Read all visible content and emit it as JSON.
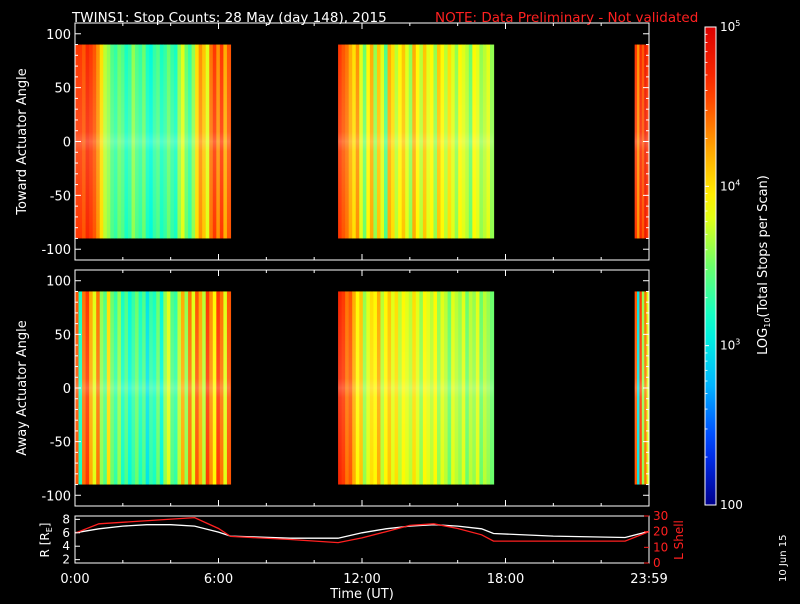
{
  "title": {
    "main": "TWINS1: Stop Counts: 28 May (day 148), 2015",
    "note": "NOTE: Data Preliminary - Not validated",
    "note_color": "#ff2020"
  },
  "date_stamp": "10 Jun 15",
  "colorbar": {
    "label_prefix": "LOG",
    "label_sub": "10",
    "label_suffix": "(Total Stops per Scan)",
    "ticks": [
      {
        "value": 100,
        "base": "100",
        "exp": ""
      },
      {
        "value": 1000,
        "base": "10",
        "exp": "3"
      },
      {
        "value": 10000,
        "base": "10",
        "exp": "4"
      },
      {
        "value": 100000,
        "base": "10",
        "exp": "5"
      }
    ],
    "range": [
      100,
      100000
    ],
    "scale": "log",
    "colormap": [
      "#00008c",
      "#0038ff",
      "#00b4ff",
      "#00ffd8",
      "#6aff6a",
      "#ffff00",
      "#ffa000",
      "#ff3000",
      "#dc0000"
    ]
  },
  "chart_data": [
    {
      "type": "heatmap",
      "name": "toward",
      "ylabel": "Toward Actuator Angle",
      "ylim": [
        -110,
        110
      ],
      "yticks": [
        100,
        50,
        0,
        -50,
        -100
      ],
      "angle_range": [
        -90,
        90
      ],
      "segments": [
        {
          "start_hour": 0.0,
          "end_hour": 6.5,
          "log_counts": [
            4.6,
            4.6,
            4.5,
            4.7,
            4.6,
            4.5,
            4.3,
            4.0,
            3.7,
            3.6,
            3.4,
            3.3,
            3.5,
            3.4,
            3.2,
            3.3,
            3.6,
            3.4,
            3.3,
            3.5,
            3.2,
            3.1,
            3.3,
            3.4,
            3.2,
            3.3,
            3.5,
            3.3,
            3.2,
            3.6,
            3.8,
            3.5,
            3.3,
            3.6,
            4.0,
            4.3,
            4.1,
            3.8,
            4.4,
            4.6,
            4.3,
            4.6,
            4.2,
            4.5
          ]
        },
        {
          "start_hour": 11.0,
          "end_hour": 17.5,
          "log_counts": [
            4.6,
            4.5,
            4.4,
            4.2,
            4.0,
            4.3,
            3.8,
            3.5,
            3.9,
            4.2,
            3.6,
            4.1,
            3.8,
            3.4,
            4.2,
            4.0,
            3.7,
            3.9,
            4.1,
            3.8,
            3.6,
            4.2,
            3.9,
            3.7,
            4.1,
            3.8,
            3.9,
            3.6,
            4.1,
            3.9,
            3.7,
            4.0,
            3.8,
            3.6,
            3.9,
            3.8,
            3.7,
            3.5,
            3.9,
            3.8,
            3.6,
            3.7,
            3.8,
            3.6
          ]
        },
        {
          "start_hour": 23.4,
          "end_hour": 24.0,
          "log_counts": [
            4.6,
            4.3,
            4.7,
            4.5,
            4.8,
            4.6
          ]
        }
      ]
    },
    {
      "type": "heatmap",
      "name": "away",
      "ylabel": "Away Actuator Angle",
      "ylim": [
        -110,
        110
      ],
      "yticks": [
        100,
        50,
        0,
        -50,
        -100
      ],
      "angle_range": [
        -90,
        90
      ],
      "segments": [
        {
          "start_hour": 0.0,
          "end_hour": 6.5,
          "log_counts": [
            4.5,
            3.2,
            4.4,
            4.6,
            4.2,
            3.8,
            4.4,
            3.6,
            3.4,
            4.0,
            3.5,
            3.3,
            3.6,
            3.2,
            3.4,
            3.1,
            3.3,
            3.5,
            3.2,
            3.4,
            3.0,
            3.3,
            3.2,
            3.5,
            3.1,
            3.6,
            3.8,
            3.4,
            3.3,
            3.7,
            4.2,
            3.6,
            4.4,
            3.8,
            4.5,
            4.2,
            3.7,
            4.6,
            4.3,
            3.9,
            4.6,
            4.4,
            3.8,
            4.5
          ]
        },
        {
          "start_hour": 11.0,
          "end_hour": 17.5,
          "log_counts": [
            4.7,
            4.6,
            4.4,
            4.5,
            4.2,
            3.9,
            4.1,
            3.6,
            3.8,
            4.0,
            3.9,
            4.2,
            3.7,
            3.9,
            4.1,
            3.8,
            4.0,
            3.7,
            3.9,
            3.8,
            3.7,
            4.0,
            3.8,
            3.6,
            3.9,
            3.8,
            3.7,
            3.9,
            3.6,
            3.8,
            3.7,
            3.5,
            3.8,
            3.7,
            3.6,
            3.8,
            3.5,
            3.7,
            3.6,
            3.8,
            3.5,
            3.7,
            3.6,
            3.5
          ]
        },
        {
          "start_hour": 23.4,
          "end_hour": 24.0,
          "log_counts": [
            4.5,
            3.0,
            4.6,
            3.6,
            4.4,
            3.8
          ]
        }
      ]
    },
    {
      "type": "line",
      "name": "orbit",
      "xlabel": "Time (UT)",
      "xlim": [
        0,
        24
      ],
      "xticks": [
        {
          "value": 0,
          "label": "0:00"
        },
        {
          "value": 6,
          "label": "6:00"
        },
        {
          "value": 12,
          "label": "12:00"
        },
        {
          "value": 18,
          "label": "18:00"
        },
        {
          "value": 24,
          "label": "23:59"
        }
      ],
      "y_left": {
        "label": "R [R",
        "label_sub": "E",
        "label_end": "]",
        "lim": [
          1.5,
          8.5
        ],
        "ticks": [
          2,
          4,
          6,
          8
        ],
        "color": "#ffffff"
      },
      "y_right": {
        "label": "L Shell",
        "lim": [
          0,
          30
        ],
        "ticks": [
          0,
          10,
          20,
          30
        ],
        "color": "#ff2020"
      },
      "series": [
        {
          "axis": "left",
          "color": "#ffffff",
          "x": [
            0,
            1,
            2,
            3,
            4,
            5,
            6,
            6.5,
            9,
            11,
            12,
            13,
            14,
            15,
            16,
            17,
            17.5,
            20,
            23,
            24
          ],
          "y": [
            6.0,
            6.6,
            7.0,
            7.2,
            7.2,
            7.0,
            6.1,
            5.5,
            5.2,
            5.2,
            6.0,
            6.6,
            7.0,
            7.2,
            7.0,
            6.6,
            5.9,
            5.5,
            5.3,
            6.2
          ]
        },
        {
          "axis": "right",
          "color": "#ff2020",
          "x": [
            0,
            1,
            5,
            6,
            6.5,
            9,
            11,
            12,
            13,
            14,
            15,
            16,
            17,
            17.5,
            20,
            23,
            24
          ],
          "y": [
            19,
            25,
            29,
            22,
            17,
            15,
            13,
            16,
            20,
            24,
            25,
            22,
            18,
            14,
            14,
            14,
            20
          ]
        }
      ]
    }
  ]
}
